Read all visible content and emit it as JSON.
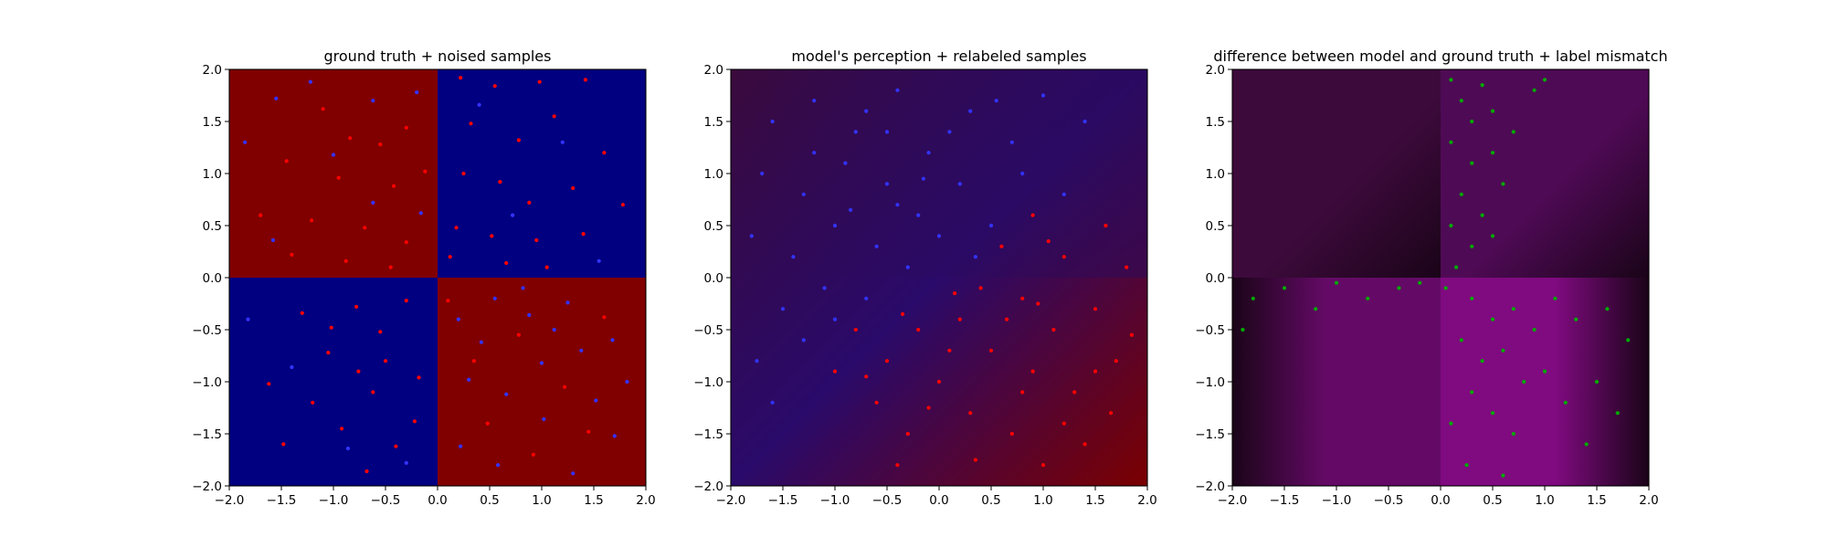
{
  "chart_data": [
    {
      "type": "heatmap",
      "title": "ground truth + noised samples",
      "xlabel": "",
      "ylabel": "",
      "xlim": [
        -2.0,
        2.0
      ],
      "ylim": [
        -2.0,
        2.0
      ],
      "xticks": [
        -2.0,
        -1.5,
        -1.0,
        -0.5,
        0.0,
        0.5,
        1.0,
        1.5,
        2.0
      ],
      "yticks": [
        -2.0,
        -1.5,
        -1.0,
        -0.5,
        0.0,
        0.5,
        1.0,
        1.5,
        2.0
      ],
      "tick_labels": [
        "−2.0",
        "−1.5",
        "−1.0",
        "−0.5",
        "0.0",
        "0.5",
        "1.0",
        "1.5",
        "2.0"
      ],
      "grid": false,
      "background": {
        "kind": "quadrants",
        "colors": {
          "top_left": "#800000",
          "top_right": "#000080",
          "bottom_left": "#000080",
          "bottom_right": "#800000"
        }
      },
      "scatter_series": [
        {
          "color": "#ff0000",
          "points": [
            [
              -1.1,
              1.62
            ],
            [
              -0.84,
              1.34
            ],
            [
              -0.55,
              1.28
            ],
            [
              -0.3,
              1.44
            ],
            [
              -1.45,
              1.12
            ],
            [
              -0.95,
              0.96
            ],
            [
              -0.42,
              0.88
            ],
            [
              -0.12,
              1.02
            ],
            [
              -1.7,
              0.6
            ],
            [
              -1.21,
              0.55
            ],
            [
              -0.7,
              0.48
            ],
            [
              -0.3,
              0.34
            ],
            [
              -1.4,
              0.22
            ],
            [
              -0.88,
              0.16
            ],
            [
              -0.45,
              0.1
            ],
            [
              0.22,
              1.92
            ],
            [
              0.55,
              1.84
            ],
            [
              0.98,
              1.88
            ],
            [
              1.42,
              1.9
            ],
            [
              0.32,
              1.48
            ],
            [
              0.78,
              1.32
            ],
            [
              1.12,
              1.55
            ],
            [
              1.6,
              1.2
            ],
            [
              0.25,
              1.0
            ],
            [
              0.6,
              0.92
            ],
            [
              0.88,
              0.72
            ],
            [
              1.3,
              0.86
            ],
            [
              1.78,
              0.7
            ],
            [
              0.18,
              0.48
            ],
            [
              0.52,
              0.4
            ],
            [
              0.95,
              0.36
            ],
            [
              1.4,
              0.42
            ],
            [
              0.12,
              0.2
            ],
            [
              0.66,
              0.14
            ],
            [
              1.05,
              0.1
            ],
            [
              -1.62,
              -1.02
            ],
            [
              -1.3,
              -0.34
            ],
            [
              -1.05,
              -0.72
            ],
            [
              -0.78,
              -0.28
            ],
            [
              -0.55,
              -0.52
            ],
            [
              -0.3,
              -0.22
            ],
            [
              -1.2,
              -1.2
            ],
            [
              -0.92,
              -1.45
            ],
            [
              -0.62,
              -1.1
            ],
            [
              -0.4,
              -1.62
            ],
            [
              -0.18,
              -0.96
            ],
            [
              -1.48,
              -1.6
            ],
            [
              -0.76,
              -0.9
            ],
            [
              -0.5,
              -0.8
            ],
            [
              -0.22,
              -1.38
            ],
            [
              -1.02,
              -0.48
            ],
            [
              -0.68,
              -1.86
            ],
            [
              0.35,
              -0.8
            ],
            [
              0.78,
              -0.55
            ],
            [
              1.22,
              -1.05
            ],
            [
              1.6,
              -0.38
            ],
            [
              0.48,
              -1.4
            ],
            [
              0.1,
              -0.22
            ],
            [
              0.92,
              -1.7
            ],
            [
              1.45,
              -1.48
            ]
          ]
        },
        {
          "color": "#3333ff",
          "points": [
            [
              -1.55,
              1.72
            ],
            [
              -1.22,
              1.88
            ],
            [
              -0.62,
              1.7
            ],
            [
              -0.2,
              1.78
            ],
            [
              -1.85,
              1.3
            ],
            [
              -1.0,
              1.18
            ],
            [
              -0.16,
              0.62
            ],
            [
              -1.58,
              0.36
            ],
            [
              -0.62,
              0.72
            ],
            [
              0.4,
              1.66
            ],
            [
              1.2,
              1.3
            ],
            [
              0.72,
              0.6
            ],
            [
              1.55,
              0.16
            ],
            [
              -1.82,
              -0.4
            ],
            [
              -0.86,
              -1.64
            ],
            [
              -0.3,
              -1.78
            ],
            [
              -1.4,
              -0.86
            ],
            [
              0.2,
              -0.4
            ],
            [
              0.55,
              -0.2
            ],
            [
              0.88,
              -0.36
            ],
            [
              1.25,
              -0.24
            ],
            [
              1.68,
              -0.6
            ],
            [
              0.3,
              -0.98
            ],
            [
              0.66,
              -1.12
            ],
            [
              1.0,
              -0.82
            ],
            [
              1.38,
              -0.7
            ],
            [
              1.82,
              -1.0
            ],
            [
              0.22,
              -1.62
            ],
            [
              0.58,
              -1.8
            ],
            [
              1.02,
              -1.36
            ],
            [
              1.3,
              -1.88
            ],
            [
              1.7,
              -1.52
            ],
            [
              0.42,
              -0.62
            ],
            [
              0.82,
              -0.1
            ],
            [
              1.12,
              -0.5
            ],
            [
              1.52,
              -1.18
            ]
          ]
        }
      ]
    },
    {
      "type": "heatmap",
      "title": "model's perception + relabeled samples",
      "xlabel": "",
      "ylabel": "",
      "xlim": [
        -2.0,
        2.0
      ],
      "ylim": [
        -2.0,
        2.0
      ],
      "xticks": [
        -2.0,
        -1.5,
        -1.0,
        -0.5,
        0.0,
        0.5,
        1.0,
        1.5,
        2.0
      ],
      "yticks": [
        -2.0,
        -1.5,
        -1.0,
        -0.5,
        0.0,
        0.5,
        1.0,
        1.5,
        2.0
      ],
      "tick_labels": [
        "−2.0",
        "−1.5",
        "−1.0",
        "−0.5",
        "0.0",
        "0.5",
        "1.0",
        "1.5",
        "2.0"
      ],
      "grid": false,
      "background": {
        "kind": "gradient",
        "colors": {
          "top_left": "#3a0a3c",
          "top_right": "#2a0a5a",
          "bottom_left": "#2a0a6a",
          "bottom_right": "#7a0000"
        }
      },
      "scatter_series": [
        {
          "color": "#3333ff",
          "points": [
            [
              -1.6,
              1.5
            ],
            [
              -1.2,
              1.7
            ],
            [
              -0.8,
              1.4
            ],
            [
              -0.4,
              1.8
            ],
            [
              -0.1,
              1.2
            ],
            [
              0.3,
              1.6
            ],
            [
              0.7,
              1.3
            ],
            [
              1.0,
              1.75
            ],
            [
              1.4,
              1.5
            ],
            [
              -1.7,
              1.0
            ],
            [
              -1.3,
              0.8
            ],
            [
              -0.9,
              1.1
            ],
            [
              -0.5,
              0.9
            ],
            [
              -0.2,
              0.6
            ],
            [
              0.2,
              0.9
            ],
            [
              0.5,
              0.5
            ],
            [
              0.8,
              1.0
            ],
            [
              -1.8,
              0.4
            ],
            [
              -1.4,
              0.2
            ],
            [
              -1.0,
              0.5
            ],
            [
              -0.6,
              0.3
            ],
            [
              -0.3,
              0.1
            ],
            [
              0.0,
              0.4
            ],
            [
              0.35,
              0.2
            ],
            [
              -1.5,
              -0.3
            ],
            [
              -1.1,
              -0.1
            ],
            [
              -0.7,
              -0.2
            ],
            [
              -1.75,
              -0.8
            ],
            [
              -1.3,
              -0.6
            ],
            [
              -0.4,
              0.7
            ],
            [
              0.1,
              1.4
            ],
            [
              -0.7,
              1.6
            ],
            [
              1.2,
              0.8
            ],
            [
              -1.0,
              -0.4
            ],
            [
              -1.6,
              -1.2
            ],
            [
              -1.2,
              1.2
            ],
            [
              -0.5,
              1.4
            ],
            [
              0.55,
              1.7
            ],
            [
              -0.15,
              0.95
            ],
            [
              -0.85,
              0.65
            ]
          ]
        },
        {
          "color": "#ff0000",
          "points": [
            [
              0.6,
              0.3
            ],
            [
              0.9,
              0.6
            ],
            [
              1.2,
              0.2
            ],
            [
              1.6,
              0.5
            ],
            [
              1.8,
              0.1
            ],
            [
              0.4,
              -0.1
            ],
            [
              0.8,
              -0.2
            ],
            [
              1.1,
              -0.5
            ],
            [
              1.5,
              -0.3
            ],
            [
              0.2,
              -0.4
            ],
            [
              0.5,
              -0.7
            ],
            [
              0.9,
              -0.9
            ],
            [
              1.3,
              -1.1
            ],
            [
              1.7,
              -0.8
            ],
            [
              -0.2,
              -0.5
            ],
            [
              -0.5,
              -0.8
            ],
            [
              -0.8,
              -0.5
            ],
            [
              -1.0,
              -0.9
            ],
            [
              -0.6,
              -1.2
            ],
            [
              -0.3,
              -1.5
            ],
            [
              0.0,
              -1.0
            ],
            [
              0.3,
              -1.3
            ],
            [
              0.7,
              -1.5
            ],
            [
              1.0,
              -1.8
            ],
            [
              1.4,
              -1.6
            ],
            [
              -0.4,
              -1.8
            ],
            [
              0.1,
              -0.7
            ],
            [
              1.2,
              -1.4
            ],
            [
              1.5,
              -0.9
            ],
            [
              0.65,
              -0.4
            ],
            [
              -0.1,
              -1.25
            ],
            [
              0.95,
              -0.25
            ],
            [
              1.85,
              -0.55
            ],
            [
              0.35,
              -1.75
            ],
            [
              -0.7,
              -0.95
            ],
            [
              1.05,
              0.35
            ],
            [
              0.15,
              -0.15
            ],
            [
              -0.35,
              -0.35
            ],
            [
              1.65,
              -1.3
            ],
            [
              0.8,
              -1.1
            ]
          ]
        }
      ]
    },
    {
      "type": "heatmap",
      "title": "difference between model and ground truth + label mismatch",
      "xlabel": "",
      "ylabel": "",
      "xlim": [
        -2.0,
        2.0
      ],
      "ylim": [
        -2.0,
        2.0
      ],
      "xticks": [
        -2.0,
        -1.5,
        -1.0,
        -0.5,
        0.0,
        0.5,
        1.0,
        1.5,
        2.0
      ],
      "yticks": [
        -2.0,
        -1.5,
        -1.0,
        -0.5,
        0.0,
        0.5,
        1.0,
        1.5,
        2.0
      ],
      "tick_labels": [
        "−2.0",
        "−1.5",
        "−1.0",
        "−0.5",
        "0.0",
        "0.5",
        "1.0",
        "1.5",
        "2.0"
      ],
      "grid": false,
      "background": {
        "kind": "quadrants-gradient",
        "colors": {
          "top_left": "#3d0a3c",
          "top_right": "#4f0a55",
          "bottom_left": "#640a66",
          "bottom_right": "#800a80",
          "center_dark": "#1a0418"
        }
      },
      "scatter_series": [
        {
          "color": "#00aa00",
          "points": [
            [
              0.1,
              1.9
            ],
            [
              0.2,
              1.7
            ],
            [
              0.3,
              1.5
            ],
            [
              0.4,
              1.85
            ],
            [
              0.5,
              1.6
            ],
            [
              0.7,
              1.4
            ],
            [
              0.9,
              1.8
            ],
            [
              1.0,
              1.9
            ],
            [
              0.1,
              1.3
            ],
            [
              0.3,
              1.1
            ],
            [
              0.5,
              1.2
            ],
            [
              0.6,
              0.9
            ],
            [
              0.2,
              0.8
            ],
            [
              0.4,
              0.6
            ],
            [
              0.1,
              0.5
            ],
            [
              0.3,
              0.3
            ],
            [
              0.5,
              0.4
            ],
            [
              0.15,
              0.1
            ],
            [
              0.05,
              -0.1
            ],
            [
              0.3,
              -0.2
            ],
            [
              0.5,
              -0.4
            ],
            [
              0.7,
              -0.3
            ],
            [
              0.9,
              -0.5
            ],
            [
              1.1,
              -0.2
            ],
            [
              1.3,
              -0.4
            ],
            [
              1.6,
              -0.3
            ],
            [
              1.8,
              -0.6
            ],
            [
              0.2,
              -0.6
            ],
            [
              0.4,
              -0.8
            ],
            [
              0.6,
              -0.7
            ],
            [
              0.8,
              -1.0
            ],
            [
              1.0,
              -0.9
            ],
            [
              1.2,
              -1.2
            ],
            [
              1.5,
              -1.0
            ],
            [
              0.3,
              -1.1
            ],
            [
              0.5,
              -1.3
            ],
            [
              0.7,
              -1.5
            ],
            [
              0.1,
              -1.4
            ],
            [
              0.25,
              -1.8
            ],
            [
              0.6,
              -1.9
            ],
            [
              1.4,
              -1.6
            ],
            [
              1.7,
              -1.3
            ],
            [
              -1.8,
              -0.2
            ],
            [
              -1.5,
              -0.1
            ],
            [
              -1.2,
              -0.3
            ],
            [
              -1.0,
              -0.05
            ],
            [
              -0.7,
              -0.2
            ],
            [
              -0.4,
              -0.1
            ],
            [
              -0.2,
              -0.05
            ],
            [
              -1.9,
              -0.5
            ]
          ]
        }
      ]
    }
  ]
}
